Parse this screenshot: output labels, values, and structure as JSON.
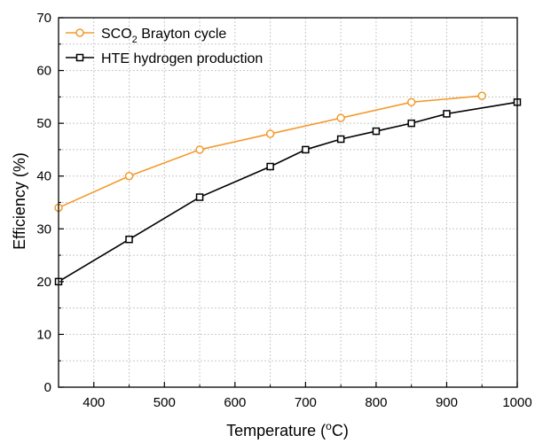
{
  "chart_data": {
    "type": "line",
    "xlabel": "Temperature (°C)",
    "xlabel_parts": {
      "pre": "Temperature (",
      "sup": "o",
      "post": "C)"
    },
    "ylabel": "Efficiency (%)",
    "xlim": [
      350,
      1000
    ],
    "ylim": [
      0,
      70
    ],
    "xticks": [
      400,
      500,
      600,
      700,
      800,
      900,
      1000
    ],
    "yticks": [
      0,
      10,
      20,
      30,
      40,
      50,
      60,
      70
    ],
    "grid": true,
    "legend_position": "top-left",
    "series": [
      {
        "name": "SCO2 Brayton cycle",
        "legend_parts": {
          "pre": "SCO",
          "sub": "2",
          "post": " Brayton cycle"
        },
        "color": "#f39a2c",
        "marker": "circle",
        "x": [
          350,
          450,
          550,
          650,
          750,
          850,
          950
        ],
        "y": [
          34,
          40,
          45,
          48,
          51,
          54,
          55.2
        ]
      },
      {
        "name": "HTE hydrogen production",
        "legend_parts": {
          "pre": "HTE hydrogen production",
          "sub": "",
          "post": ""
        },
        "color": "#000000",
        "marker": "square",
        "x": [
          350,
          450,
          550,
          650,
          700,
          750,
          800,
          850,
          900,
          1000
        ],
        "y": [
          20,
          28,
          36,
          41.8,
          45,
          47,
          48.5,
          50,
          51.8,
          54
        ]
      }
    ]
  }
}
